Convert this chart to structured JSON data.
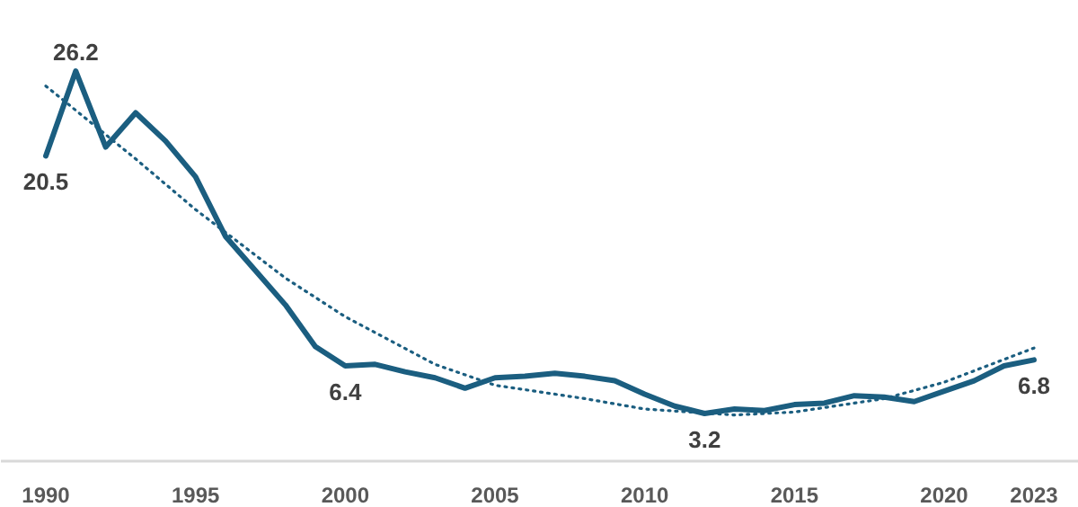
{
  "chart_data": {
    "type": "line",
    "x": [
      1990,
      1991,
      1992,
      1993,
      1994,
      1995,
      1996,
      1997,
      1998,
      1999,
      2000,
      2001,
      2002,
      2003,
      2004,
      2005,
      2006,
      2007,
      2008,
      2009,
      2010,
      2011,
      2012,
      2013,
      2014,
      2015,
      2016,
      2017,
      2018,
      2019,
      2020,
      2021,
      2022,
      2023
    ],
    "xlim": [
      1988.5,
      2024.5
    ],
    "xticks": [
      1990,
      1995,
      2000,
      2005,
      2010,
      2015,
      2020,
      2023
    ],
    "grid": false,
    "series": [
      {
        "color": "#1b5e80",
        "line_style": "solid",
        "values": [
          20.5,
          26.2,
          21.1,
          23.4,
          21.5,
          19.1,
          15.1,
          12.8,
          10.5,
          7.7,
          6.4,
          6.5,
          6.0,
          5.6,
          4.9,
          5.6,
          5.7,
          5.9,
          5.7,
          5.4,
          4.5,
          3.7,
          3.2,
          3.5,
          3.4,
          3.8,
          3.9,
          4.4,
          4.3,
          4.0,
          4.7,
          5.4,
          6.4,
          6.8
        ],
        "value_labels": [
          "20.5",
          "26.2",
          null,
          null,
          null,
          null,
          null,
          null,
          null,
          null,
          "6.4",
          null,
          null,
          null,
          null,
          null,
          null,
          null,
          null,
          null,
          null,
          null,
          "3.2",
          null,
          null,
          null,
          null,
          null,
          null,
          null,
          null,
          null,
          null,
          "6.8"
        ]
      },
      {
        "type": "line",
        "color": "#1b5e80",
        "line_style": "dotted",
        "x": [
          1990,
          1993,
          1995,
          1998,
          2000,
          2003,
          2005,
          2008,
          2010,
          2013,
          2015,
          2018,
          2020,
          2023
        ],
        "values": [
          25.2,
          20.3,
          16.9,
          12.3,
          9.7,
          6.5,
          5.1,
          4.2,
          3.5,
          3.1,
          3.3,
          4.2,
          5.3,
          7.6
        ]
      }
    ]
  }
}
